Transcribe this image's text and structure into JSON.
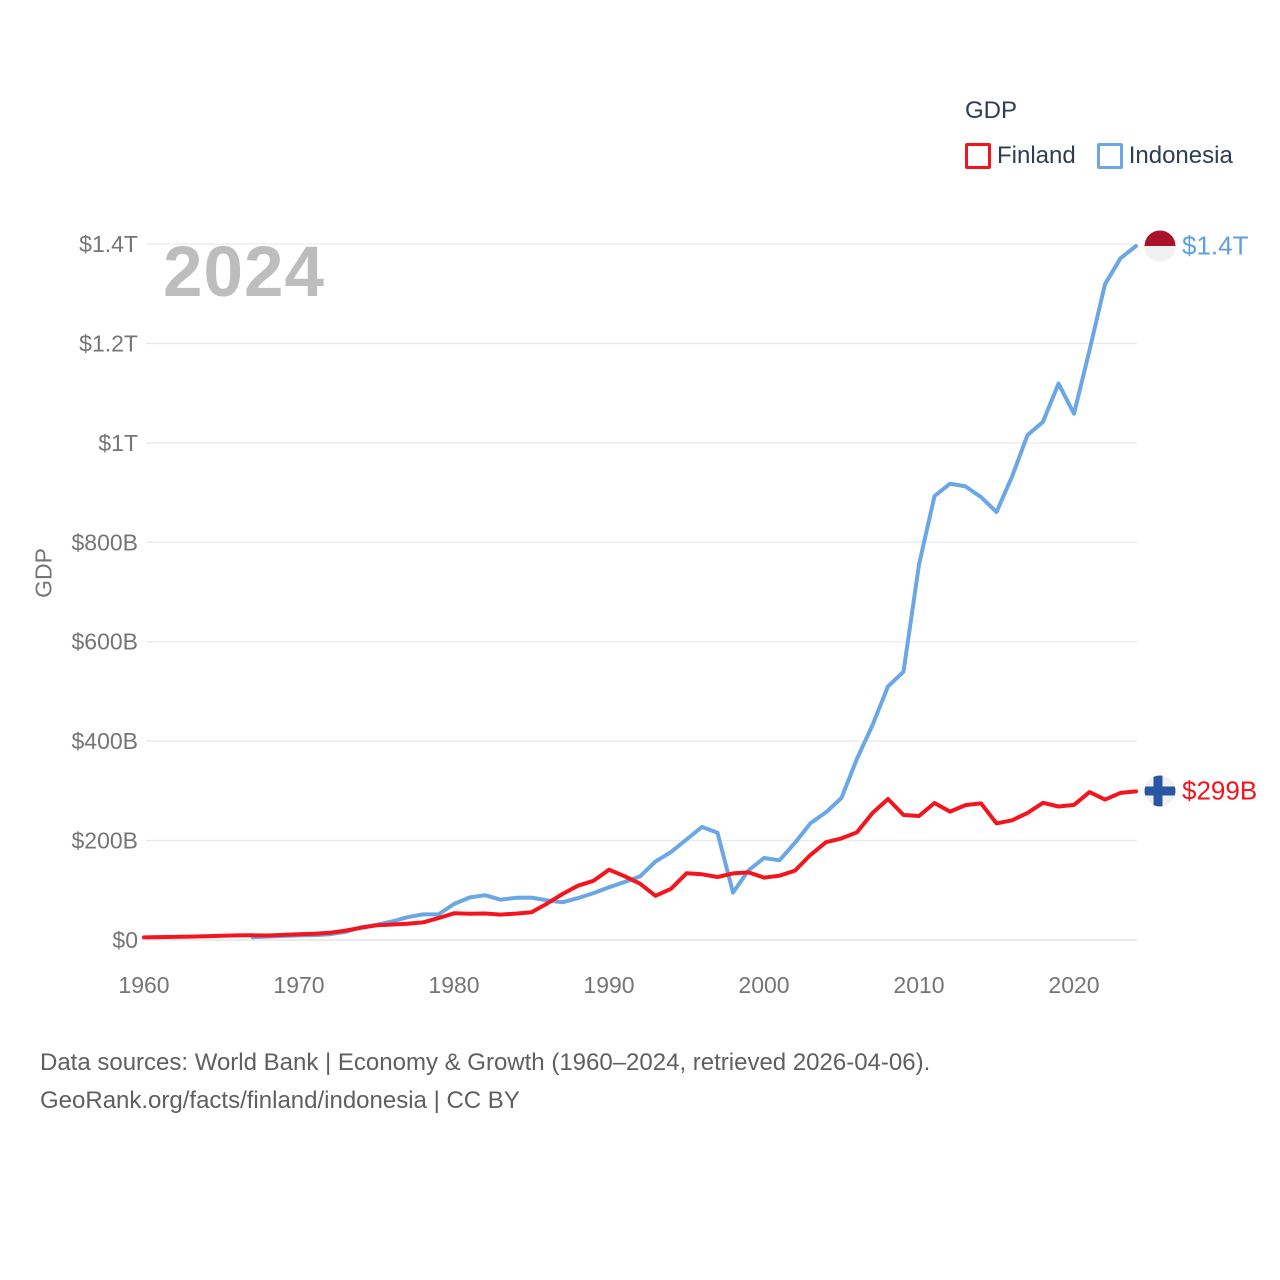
{
  "watermark": "2024",
  "legend": {
    "title": "GDP",
    "items": [
      {
        "label": "Finland",
        "color": "#f3141e",
        "swatch": "outlined-square"
      },
      {
        "label": "Indonesia",
        "color": "#6aa7e4",
        "swatch": "outlined-square"
      }
    ]
  },
  "end_labels": {
    "indonesia": "$1.4T",
    "finland": "$299B"
  },
  "flags": {
    "indonesia": {
      "top_color": "#a8122b",
      "bottom_color": "#f1f1f1"
    },
    "finland": {
      "background": "#f1f1f1",
      "cross_color": "#2a55a5"
    }
  },
  "footer": {
    "line1": "Data sources: World Bank | Economy & Growth (1960–2024, retrieved 2026-04-06).",
    "line2": "GeoRank.org/facts/finland/indonesia | CC BY"
  },
  "chart_data": {
    "type": "line",
    "title": "GDP",
    "ylabel": "GDP",
    "units": "current US$ (billions)",
    "grid": "horizontal",
    "legend_position": "top-right",
    "x_years": {
      "start": 1960,
      "end": 2024,
      "step": 1
    },
    "xticks": {
      "values": [
        1960,
        1970,
        1980,
        1990,
        2000,
        2010,
        2020
      ],
      "labels": [
        "1960",
        "1970",
        "1980",
        "1990",
        "2000",
        "2010",
        "2020"
      ]
    },
    "yticks": {
      "values": [
        0,
        200,
        400,
        600,
        800,
        1000,
        1200,
        1400
      ],
      "labels": [
        "$0",
        "$200B",
        "$400B",
        "$600B",
        "$800B",
        "$1T",
        "$1.2T",
        "$1.4T"
      ]
    },
    "ylim_b": [
      0,
      1400
    ],
    "series": [
      {
        "name": "Finland",
        "color": "#f3141e",
        "values_billither": null,
        "values": [
          5.2,
          5.9,
          6.3,
          6.9,
          7.7,
          8.6,
          9.2,
          9.4,
          9.1,
          10.3,
          11.4,
          12.4,
          14.4,
          19.0,
          24.6,
          29.5,
          31.2,
          32.7,
          35.5,
          44.0,
          53.7,
          52.8,
          53.3,
          51.0,
          53.2,
          56.0,
          73.3,
          92.5,
          109.3,
          119.1,
          141.5,
          128.3,
          113.3,
          89.0,
          102.9,
          134.2,
          132.1,
          126.8,
          133.9,
          135.9,
          125.5,
          129.3,
          139.5,
          171.1,
          196.8,
          204.4,
          216.6,
          255.4,
          283.7,
          251.5,
          249.4,
          275.6,
          258.3,
          271.4,
          274.9,
          234.5,
          240.7,
          255.6,
          275.9,
          268.5,
          271.8,
          297.5,
          282.5,
          295.9,
          299.0
        ]
      },
      {
        "name": "Indonesia",
        "color": "#6aa7e4",
        "values_billither": null,
        "values": [
          null,
          null,
          null,
          null,
          null,
          null,
          null,
          5.7,
          7.1,
          8.3,
          9.2,
          9.9,
          11.6,
          16.3,
          25.8,
          30.5,
          37.3,
          45.8,
          51.5,
          51.4,
          72.5,
          85.5,
          90.2,
          81.0,
          84.8,
          85.3,
          79.9,
          75.9,
          84.3,
          94.4,
          106.1,
          116.6,
          128.0,
          158.0,
          176.9,
          202.1,
          227.4,
          215.7,
          95.4,
          140.0,
          165.0,
          160.4,
          195.7,
          234.8,
          256.8,
          285.9,
          364.6,
          432.2,
          510.2,
          539.6,
          755.1,
          893.0,
          917.9,
          912.5,
          890.8,
          860.9,
          931.9,
          1015.6,
          1042.3,
          1119.1,
          1058.7,
          1186.1,
          1319.1,
          1371.2,
          1396.0
        ]
      }
    ]
  }
}
